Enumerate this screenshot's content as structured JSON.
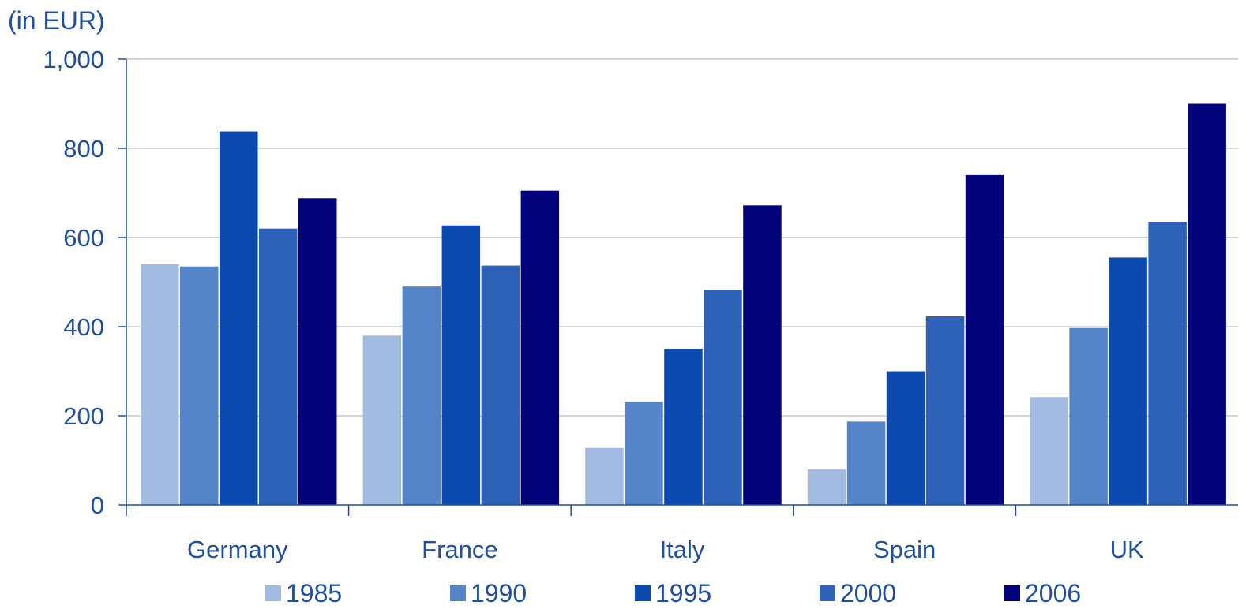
{
  "chart_data": {
    "type": "bar",
    "unit_label": "(in EUR)",
    "categories": [
      "Germany",
      "France",
      "Italy",
      "Spain",
      "UK"
    ],
    "series": [
      {
        "name": "1985",
        "color": "#a3bbe0",
        "values": [
          540,
          380,
          128,
          80,
          242
        ]
      },
      {
        "name": "1990",
        "color": "#5585c8",
        "values": [
          535,
          490,
          232,
          187,
          397
        ]
      },
      {
        "name": "1995",
        "color": "#0c4aaf",
        "values": [
          838,
          627,
          350,
          300,
          555
        ]
      },
      {
        "name": "2000",
        "color": "#2e62b9",
        "values": [
          620,
          537,
          483,
          423,
          635
        ]
      },
      {
        "name": "2006",
        "color": "#02027a",
        "values": [
          688,
          705,
          672,
          740,
          900
        ]
      }
    ],
    "yticks": [
      "0",
      "200",
      "400",
      "600",
      "800",
      "1,000"
    ],
    "ylim": [
      0,
      1000
    ],
    "grid": true,
    "legend_position": "bottom",
    "text_color": "#1f4fa3",
    "axis_color": "#1f4fa3",
    "grid_color": "#c8c8c8"
  }
}
